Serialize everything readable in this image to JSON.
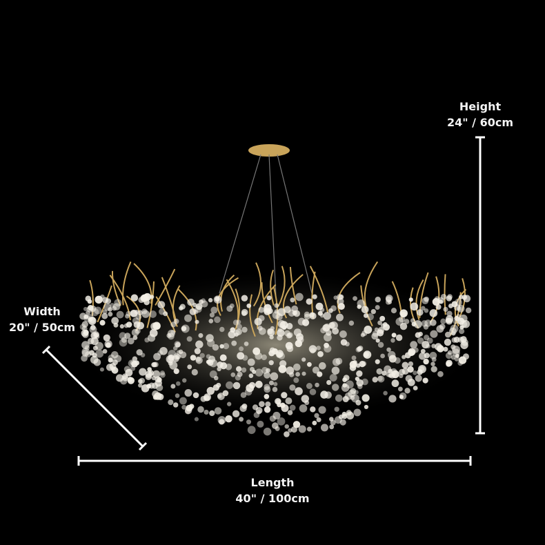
{
  "product": {
    "name": "crystal branch chandelier",
    "metal_color": "#c9a45a",
    "crystal_color": "#f3efe6"
  },
  "dimensions": {
    "height": {
      "label": "Height",
      "value": "24\" / 60cm"
    },
    "width": {
      "label": "Width",
      "value": "20\" / 50cm"
    },
    "length": {
      "label": "Length",
      "value": "40\" / 100cm"
    }
  }
}
